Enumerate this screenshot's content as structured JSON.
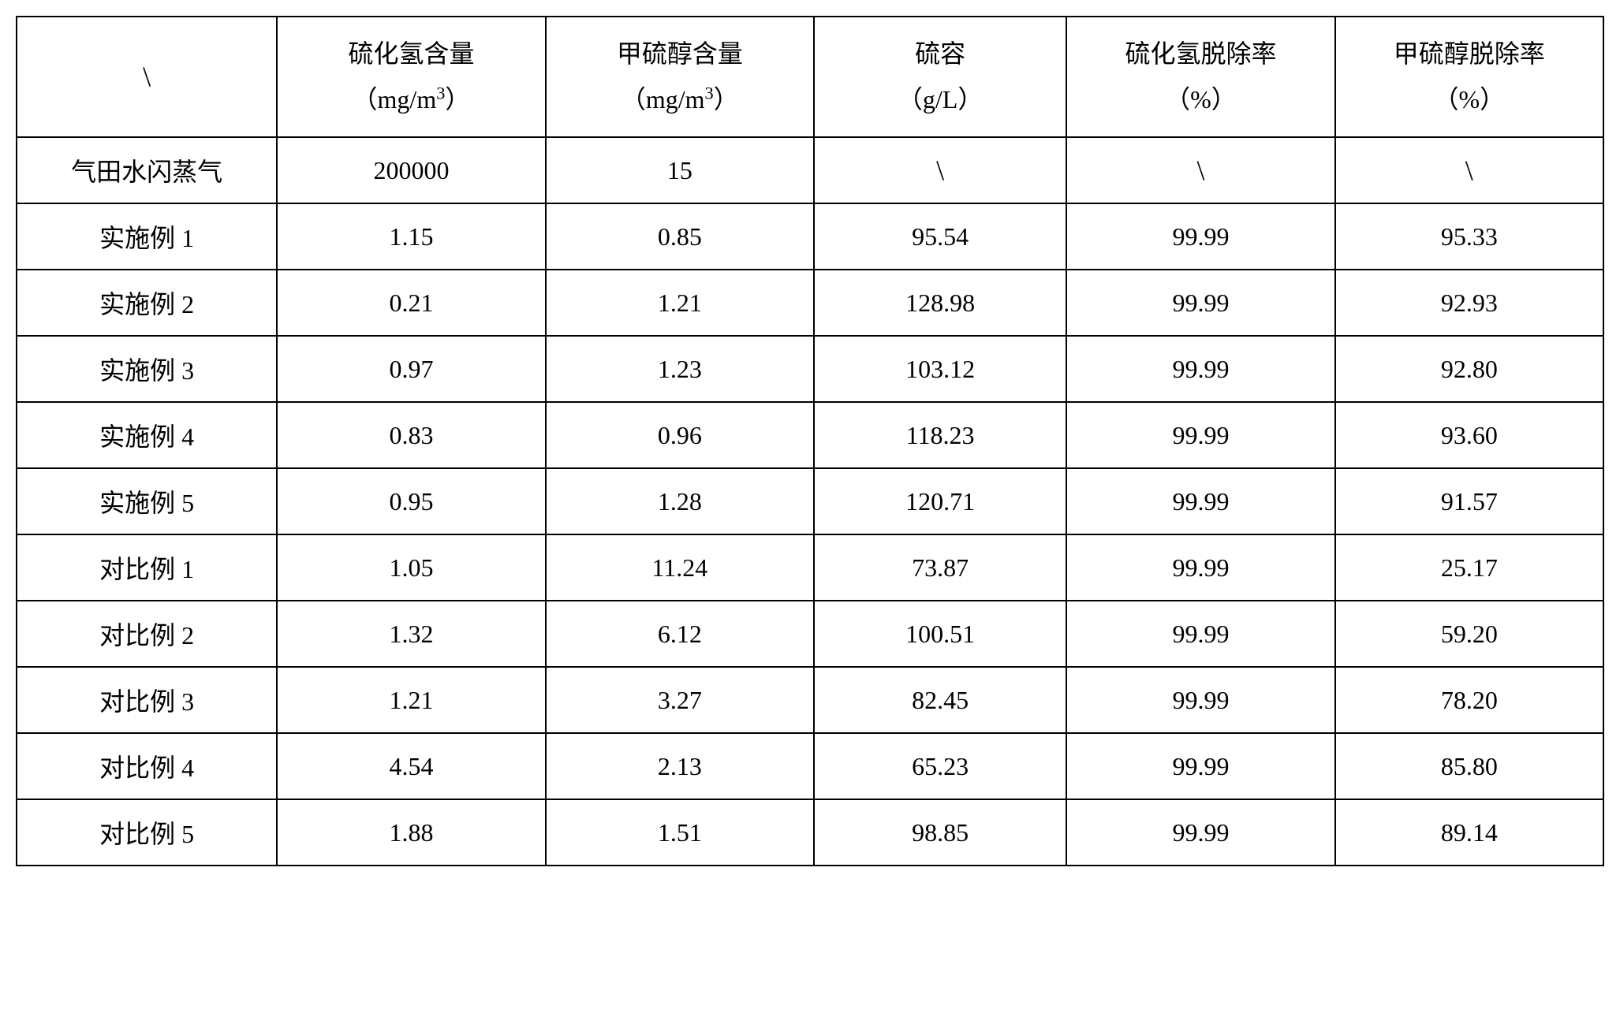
{
  "table": {
    "type": "table",
    "background_color": "#ffffff",
    "border_color": "#000000",
    "border_width": 2,
    "text_color": "#000000",
    "font_family": "SimSun",
    "cell_fontsize": 32,
    "header_fontsize": 32,
    "text_align": "center",
    "column_widths_pct": [
      16.5,
      17,
      17,
      16,
      17,
      17
    ],
    "columns": [
      {
        "label_main": "\\",
        "label_unit": "",
        "is_backslash": true
      },
      {
        "label_main": "硫化氢含量",
        "label_unit": "（mg/m³）",
        "has_superscript": true,
        "unit_base": "（mg/m",
        "unit_sup": "3",
        "unit_close": "）"
      },
      {
        "label_main": "甲硫醇含量",
        "label_unit": "（mg/m³）",
        "has_superscript": true,
        "unit_base": "（mg/m",
        "unit_sup": "3",
        "unit_close": "）"
      },
      {
        "label_main": "硫容",
        "label_unit": "（g/L）",
        "has_superscript": false
      },
      {
        "label_main": "硫化氢脱除率",
        "label_unit": "（%）",
        "has_superscript": false
      },
      {
        "label_main": "甲硫醇脱除率",
        "label_unit": "（%）",
        "has_superscript": false
      }
    ],
    "rows": [
      {
        "label": "气田水闪蒸气",
        "cells": [
          "200000",
          "15",
          "\\",
          "\\",
          "\\"
        ]
      },
      {
        "label": "实施例 1",
        "cells": [
          "1.15",
          "0.85",
          "95.54",
          "99.99",
          "95.33"
        ]
      },
      {
        "label": "实施例 2",
        "cells": [
          "0.21",
          "1.21",
          "128.98",
          "99.99",
          "92.93"
        ]
      },
      {
        "label": "实施例 3",
        "cells": [
          "0.97",
          "1.23",
          "103.12",
          "99.99",
          "92.80"
        ]
      },
      {
        "label": "实施例 4",
        "cells": [
          "0.83",
          "0.96",
          "118.23",
          "99.99",
          "93.60"
        ]
      },
      {
        "label": "实施例 5",
        "cells": [
          "0.95",
          "1.28",
          "120.71",
          "99.99",
          "91.57"
        ]
      },
      {
        "label": "对比例 1",
        "cells": [
          "1.05",
          "11.24",
          "73.87",
          "99.99",
          "25.17"
        ]
      },
      {
        "label": "对比例 2",
        "cells": [
          "1.32",
          "6.12",
          "100.51",
          "99.99",
          "59.20"
        ]
      },
      {
        "label": "对比例 3",
        "cells": [
          "1.21",
          "3.27",
          "82.45",
          "99.99",
          "78.20"
        ]
      },
      {
        "label": "对比例 4",
        "cells": [
          "4.54",
          "2.13",
          "65.23",
          "99.99",
          "85.80"
        ]
      },
      {
        "label": "对比例 5",
        "cells": [
          "1.88",
          "1.51",
          "98.85",
          "99.99",
          "89.14"
        ]
      }
    ]
  }
}
